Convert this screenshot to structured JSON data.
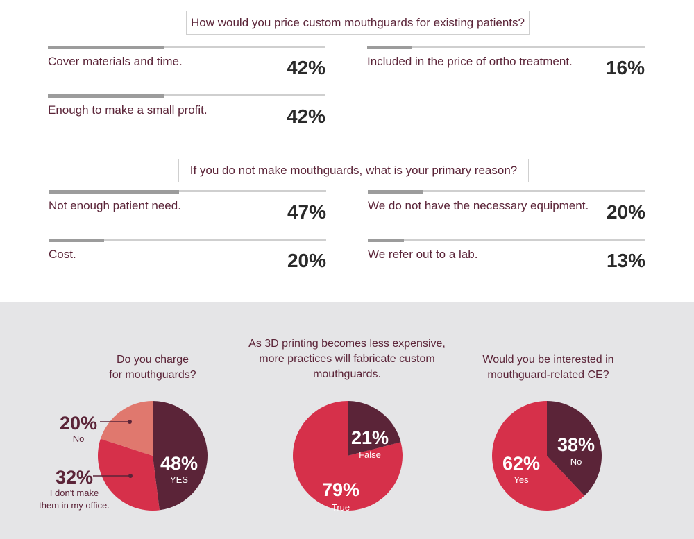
{
  "section1": {
    "question": "How would you price custom mouthguards for existing patients?",
    "items": [
      {
        "label": "Cover materials and time.",
        "percent": "42%",
        "value": 42
      },
      {
        "label": "Included in the price of ortho treatment.",
        "percent": "16%",
        "value": 16
      },
      {
        "label": "Enough to make a small profit.",
        "percent": "42%",
        "value": 42
      }
    ]
  },
  "section2": {
    "question": "If you do not make mouthguards, what is your primary reason?",
    "items": [
      {
        "label": "Not enough patient need.",
        "percent": "47%",
        "value": 47
      },
      {
        "label": "We do not have the necessary equipment.",
        "percent": "20%",
        "value": 20
      },
      {
        "label": "Cost.",
        "percent": "20%",
        "value": 20
      },
      {
        "label": "We refer out to a lab.",
        "percent": "13%",
        "value": 13
      }
    ]
  },
  "colors": {
    "maroon": "#5b2438",
    "red": "#d6304a",
    "salmon": "#e0786e",
    "band": "#e5e5e7",
    "bar_track": "#cfcfcf",
    "bar_fill": "#9c9c9c"
  },
  "chart_data": [
    {
      "type": "pie",
      "title_lines": [
        "Do you charge",
        "for mouthguards?"
      ],
      "slices": [
        {
          "name": "YES",
          "value": 48,
          "percent": "48%",
          "color": "#5b2438"
        },
        {
          "name": "I don't make them in my office.",
          "label_lines": [
            "I don't make",
            "them in my office."
          ],
          "value": 32,
          "percent": "32%",
          "color": "#d6304a"
        },
        {
          "name": "No",
          "value": 20,
          "percent": "20%",
          "color": "#e0786e"
        }
      ]
    },
    {
      "type": "pie",
      "title_lines": [
        "As 3D printing becomes less expensive,",
        "more practices will fabricate custom",
        "mouthguards."
      ],
      "slices": [
        {
          "name": "False",
          "value": 21,
          "percent": "21%",
          "color": "#5b2438"
        },
        {
          "name": "True",
          "value": 79,
          "percent": "79%",
          "color": "#d6304a"
        }
      ]
    },
    {
      "type": "pie",
      "title_lines": [
        "Would you be interested in",
        "mouthguard-related CE?"
      ],
      "slices": [
        {
          "name": "No",
          "value": 38,
          "percent": "38%",
          "color": "#5b2438"
        },
        {
          "name": "Yes",
          "value": 62,
          "percent": "62%",
          "color": "#d6304a"
        }
      ]
    }
  ]
}
